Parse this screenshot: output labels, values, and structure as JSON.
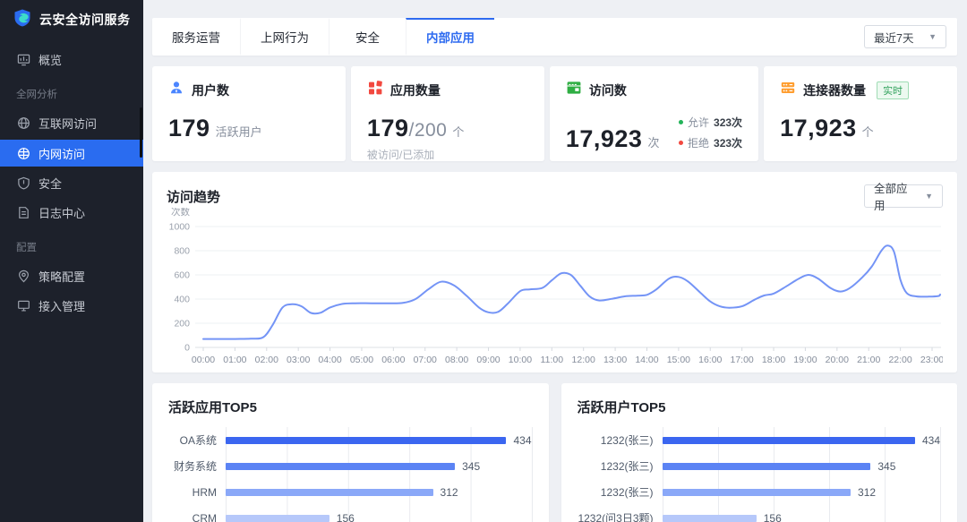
{
  "app_title": "云安全访问服务",
  "colors": {
    "accent": "#2e6bf0",
    "trend_line": "#7494f6",
    "allow_green": "#23b359",
    "deny_red": "#f2483f",
    "badge_green": "#30a15b",
    "icon_user_blue": "#4c86ff",
    "icon_app_red": "#f2483f",
    "icon_visit_green": "#2fae43",
    "icon_connector_orange": "#ff9d2e",
    "bar_palette": [
      "#3b66f0",
      "#5b83f4",
      "#8aa8f8",
      "#b6c8fa"
    ]
  },
  "sidebar": {
    "logo_label": "云安全访问服务",
    "sections": [
      {
        "title": "",
        "items": [
          {
            "label": "概览",
            "icon": "overview-icon"
          }
        ]
      },
      {
        "title": "全网分析",
        "items": [
          {
            "label": "互联网访问",
            "icon": "internet-access-icon"
          },
          {
            "label": "内网访问",
            "icon": "intranet-access-icon",
            "active": true
          },
          {
            "label": "安全",
            "icon": "security-icon"
          },
          {
            "label": "日志中心",
            "icon": "log-center-icon"
          }
        ]
      },
      {
        "title": "配置",
        "items": [
          {
            "label": "策略配置",
            "icon": "policy-config-icon"
          },
          {
            "label": "接入管理",
            "icon": "access-management-icon"
          }
        ]
      }
    ]
  },
  "header": {
    "tabs": [
      {
        "label": "服务运营"
      },
      {
        "label": "上网行为"
      },
      {
        "label": "安全"
      },
      {
        "label": "内部应用",
        "active": true
      }
    ],
    "time_range": {
      "value": "最近7天"
    }
  },
  "stats": {
    "cards": [
      {
        "title": "用户数",
        "icon": "users-icon",
        "value": "179",
        "unit": "活跃用户"
      },
      {
        "title": "应用数量",
        "icon": "apps-icon",
        "value": "179",
        "total": "/200",
        "unit": "个",
        "subtitle": "被访问/已添加"
      },
      {
        "title": "访问数",
        "icon": "visits-icon",
        "value": "17,923",
        "unit": "次",
        "legend": [
          {
            "label": "允许",
            "value": "323次",
            "color": "#23b359"
          },
          {
            "label": "拒绝",
            "value": "323次",
            "color": "#f2483f"
          }
        ]
      },
      {
        "title": "连接器数量",
        "icon": "connectors-icon",
        "badge": "实时",
        "value": "17,923",
        "unit": "个"
      }
    ]
  },
  "trend": {
    "filter": {
      "value": "全部应用"
    }
  },
  "chart_data": [
    {
      "id": "access-trend",
      "type": "line",
      "title": "访问趋势",
      "ylabel": "次数",
      "ylim": [
        0,
        1000
      ],
      "yticks": [
        0,
        200,
        400,
        600,
        800,
        1000
      ],
      "x_labels": [
        "00:00",
        "01:00",
        "02:00",
        "03:00",
        "04:00",
        "05:00",
        "06:00",
        "07:00",
        "08:00",
        "09:00",
        "10:00",
        "11:00",
        "12:00",
        "13:00",
        "14:00",
        "15:00",
        "16:00",
        "17:00",
        "18:00",
        "19:00",
        "20:00",
        "21:00",
        "22:00",
        "23:00"
      ],
      "x_end_hour": 23.4,
      "grid": true,
      "legend_position": "none",
      "line_color": "#7494f6",
      "points": [
        [
          0,
          70
        ],
        [
          0.5,
          70
        ],
        [
          1,
          70
        ],
        [
          1.5,
          72
        ],
        [
          1.9,
          85
        ],
        [
          2.2,
          190
        ],
        [
          2.5,
          330
        ],
        [
          2.8,
          357
        ],
        [
          3.1,
          340
        ],
        [
          3.4,
          285
        ],
        [
          3.7,
          287
        ],
        [
          4,
          330
        ],
        [
          4.4,
          360
        ],
        [
          4.8,
          365
        ],
        [
          5.3,
          365
        ],
        [
          5.8,
          365
        ],
        [
          6.3,
          368
        ],
        [
          6.7,
          400
        ],
        [
          7.1,
          480
        ],
        [
          7.5,
          543
        ],
        [
          7.9,
          515
        ],
        [
          8.3,
          430
        ],
        [
          8.7,
          330
        ],
        [
          9,
          290
        ],
        [
          9.3,
          293
        ],
        [
          9.6,
          360
        ],
        [
          10,
          465
        ],
        [
          10.3,
          480
        ],
        [
          10.7,
          492
        ],
        [
          11,
          555
        ],
        [
          11.3,
          613
        ],
        [
          11.6,
          600
        ],
        [
          11.9,
          510
        ],
        [
          12.2,
          420
        ],
        [
          12.5,
          388
        ],
        [
          12.9,
          402
        ],
        [
          13.3,
          422
        ],
        [
          13.7,
          428
        ],
        [
          14,
          435
        ],
        [
          14.3,
          480
        ],
        [
          14.7,
          570
        ],
        [
          15,
          583
        ],
        [
          15.3,
          545
        ],
        [
          15.7,
          450
        ],
        [
          16,
          380
        ],
        [
          16.3,
          340
        ],
        [
          16.6,
          328
        ],
        [
          17,
          340
        ],
        [
          17.4,
          395
        ],
        [
          17.7,
          430
        ],
        [
          18,
          445
        ],
        [
          18.4,
          505
        ],
        [
          18.8,
          570
        ],
        [
          19.1,
          600
        ],
        [
          19.4,
          570
        ],
        [
          19.8,
          490
        ],
        [
          20.1,
          462
        ],
        [
          20.4,
          490
        ],
        [
          20.8,
          580
        ],
        [
          21.1,
          670
        ],
        [
          21.4,
          800
        ],
        [
          21.6,
          843
        ],
        [
          21.8,
          790
        ],
        [
          22,
          560
        ],
        [
          22.2,
          450
        ],
        [
          22.5,
          422
        ],
        [
          22.9,
          420
        ],
        [
          23.2,
          425
        ],
        [
          23.4,
          438
        ]
      ]
    },
    {
      "id": "top-apps",
      "type": "bar",
      "title": "活跃应用TOP5",
      "orientation": "horizontal",
      "categories": [
        "OA系统",
        "财务系统",
        "HRM",
        "CRM"
      ],
      "values": [
        434,
        345,
        312,
        156
      ],
      "xlim": [
        0,
        460
      ],
      "grid": true,
      "bar_colors": [
        "#3b66f0",
        "#5b83f4",
        "#8aa8f8",
        "#b6c8fa"
      ],
      "label_width": 64
    },
    {
      "id": "top-users",
      "type": "bar",
      "title": "活跃用户TOP5",
      "orientation": "horizontal",
      "categories": [
        "1232(张三)",
        "1232(张三)",
        "1232(张三)",
        "1232(问3日3颗)"
      ],
      "values": [
        434,
        345,
        312,
        156
      ],
      "xlim": [
        0,
        460
      ],
      "grid": true,
      "bar_colors": [
        "#3b66f0",
        "#5b83f4",
        "#8aa8f8",
        "#b6c8fa"
      ],
      "label_width": 95
    }
  ]
}
